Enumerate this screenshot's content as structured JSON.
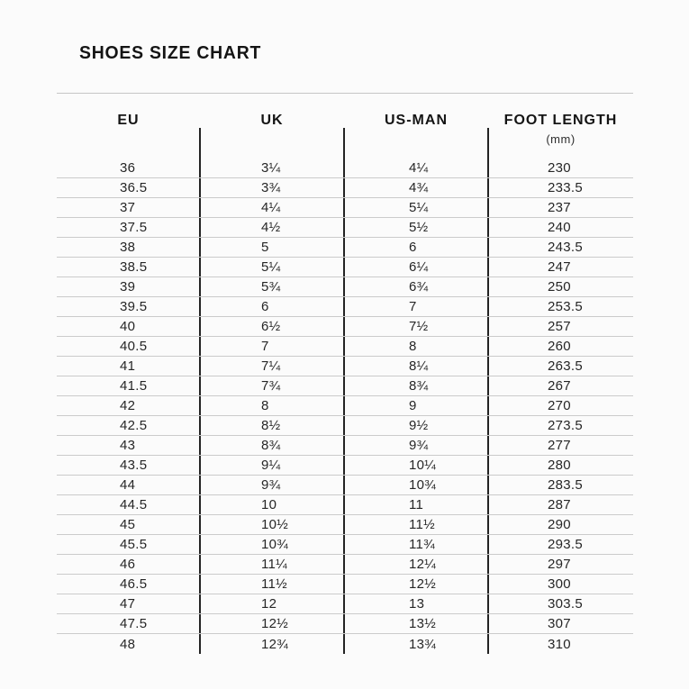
{
  "page": {
    "title": "SHOES SIZE CHART"
  },
  "colors": {
    "background": "#fbfbfb",
    "text": "#262626",
    "heading": "#141414",
    "row_line": "#cbcbcb",
    "column_divider": "#232323"
  },
  "table": {
    "columns": [
      {
        "label": "EU",
        "sub": ""
      },
      {
        "label": "UK",
        "sub": ""
      },
      {
        "label": "US-MAN",
        "sub": ""
      },
      {
        "label": "FOOT LENGTH",
        "sub": "(mm)"
      }
    ],
    "rows": [
      [
        "36",
        "3¼",
        "4¼",
        "230"
      ],
      [
        "36.5",
        "3¾",
        "4¾",
        "233.5"
      ],
      [
        "37",
        "4¼",
        "5¼",
        "237"
      ],
      [
        "37.5",
        "4½",
        "5½",
        "240"
      ],
      [
        "38",
        "5",
        "6",
        "243.5"
      ],
      [
        "38.5",
        "5¼",
        "6¼",
        "247"
      ],
      [
        "39",
        "5¾",
        "6¾",
        "250"
      ],
      [
        "39.5",
        "6",
        "7",
        "253.5"
      ],
      [
        "40",
        "6½",
        "7½",
        "257"
      ],
      [
        "40.5",
        "7",
        "8",
        "260"
      ],
      [
        "41",
        "7¼",
        "8¼",
        "263.5"
      ],
      [
        "41.5",
        "7¾",
        "8¾",
        "267"
      ],
      [
        "42",
        "8",
        "9",
        "270"
      ],
      [
        "42.5",
        "8½",
        "9½",
        "273.5"
      ],
      [
        "43",
        "8¾",
        "9¾",
        "277"
      ],
      [
        "43.5",
        "9¼",
        "10¼",
        "280"
      ],
      [
        "44",
        "9¾",
        "10¾",
        "283.5"
      ],
      [
        "44.5",
        "10",
        "11",
        "287"
      ],
      [
        "45",
        "10½",
        "11½",
        "290"
      ],
      [
        "45.5",
        "10¾",
        "11¾",
        "293.5"
      ],
      [
        "46",
        "11¼",
        "12¼",
        "297"
      ],
      [
        "46.5",
        "11½",
        "12½",
        "300"
      ],
      [
        "47",
        "12",
        "13",
        "303.5"
      ],
      [
        "47.5",
        "12½",
        "13½",
        "307"
      ],
      [
        "48",
        "12¾",
        "13¾",
        "310"
      ]
    ]
  }
}
